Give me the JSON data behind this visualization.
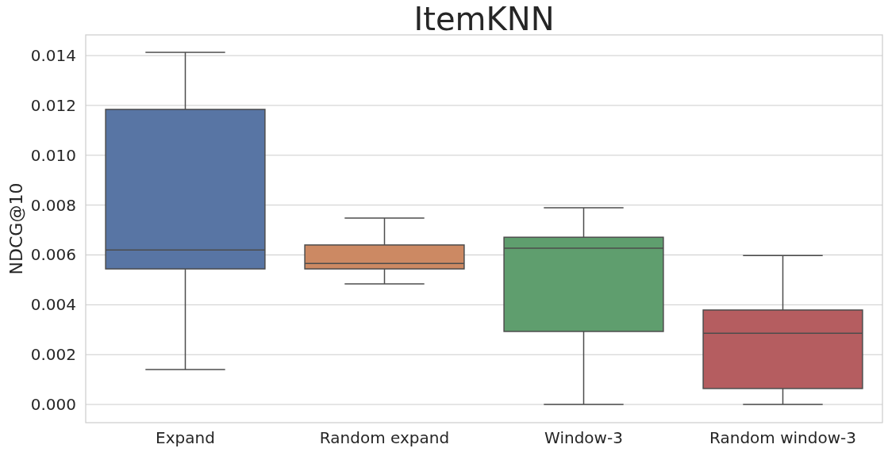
{
  "chart_data": {
    "type": "box",
    "title": "ItemKNN",
    "ylabel": "NDCG@10",
    "categories": [
      "Expand",
      "Random expand",
      "Window-3",
      "Random window-3"
    ],
    "colors": [
      "#5875a4",
      "#cc8963",
      "#5f9e6e",
      "#b55d60"
    ],
    "boxes": [
      {
        "low": 0.0014,
        "q1": 0.00544,
        "median": 0.0062,
        "q3": 0.01184,
        "high": 0.01413
      },
      {
        "low": 0.00484,
        "q1": 0.00544,
        "median": 0.00566,
        "q3": 0.0064,
        "high": 0.00748
      },
      {
        "low": 0,
        "q1": 0.00293,
        "median": 0.00627,
        "q3": 0.00671,
        "high": 0.00789
      },
      {
        "low": 0,
        "q1": 0.00064,
        "median": 0.00286,
        "q3": 0.00379,
        "high": 0.00598
      }
    ],
    "ylim": [
      -0.00073,
      0.01483
    ],
    "yticks": [
      {
        "value": 0,
        "label": "0.000"
      },
      {
        "value": 0.002,
        "label": "0.002"
      },
      {
        "value": 0.004,
        "label": "0.004"
      },
      {
        "value": 0.006,
        "label": "0.006"
      },
      {
        "value": 0.008,
        "label": "0.008"
      },
      {
        "value": 0.01,
        "label": "0.010"
      },
      {
        "value": 0.012,
        "label": "0.012"
      },
      {
        "value": 0.014,
        "label": "0.014"
      }
    ],
    "grid": "y"
  }
}
